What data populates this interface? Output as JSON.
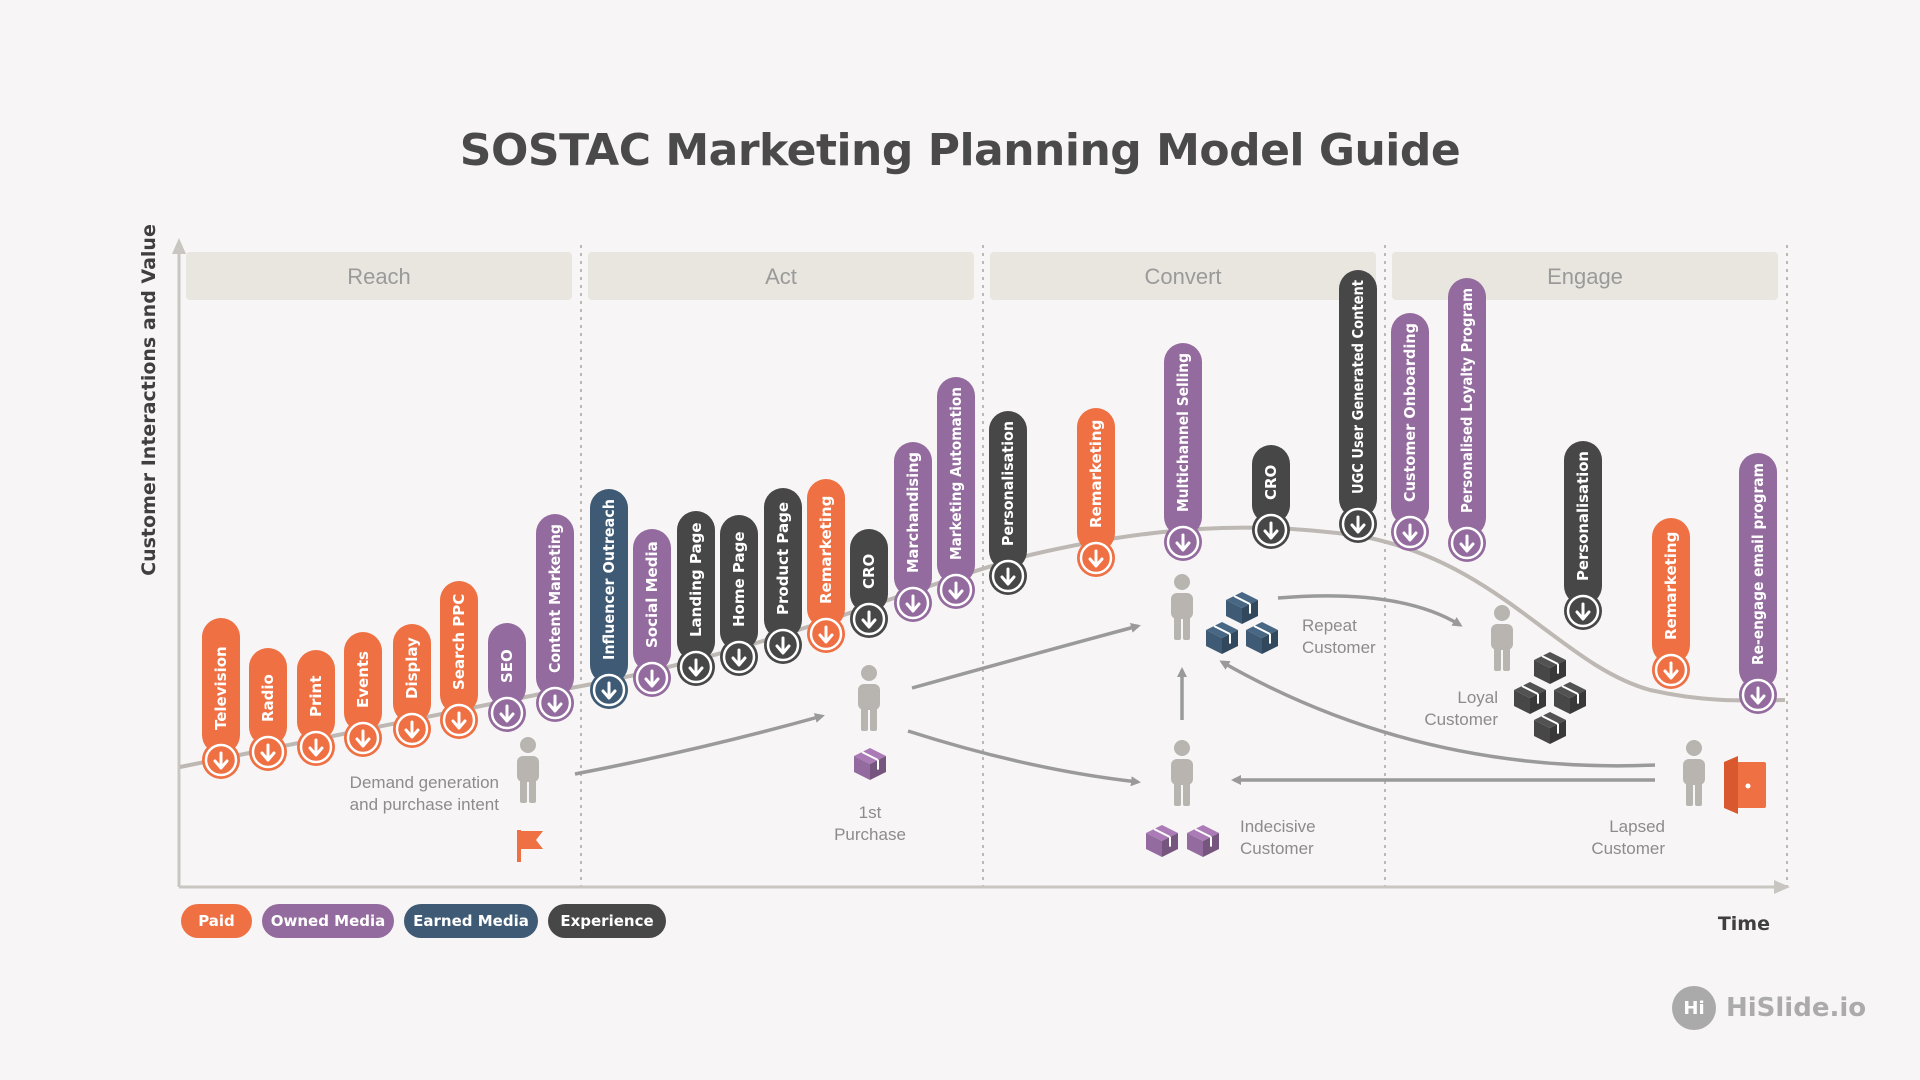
{
  "title": "SOSTAC Marketing Planning Model Guide",
  "colors": {
    "paid": "#ef7043",
    "owned": "#946b9e",
    "earned": "#3e5a74",
    "experience": "#474747",
    "phase_bg": "#e9e6df",
    "curve": "#bdb8b3",
    "arrow": "#9a9a9a",
    "person": "#b8b5b0"
  },
  "axes": {
    "y_label": "Customer Interactions and Value",
    "x_label": "Time"
  },
  "phases": [
    "Reach",
    "Act",
    "Convert",
    "Engage"
  ],
  "touchpoints": [
    {
      "label": "Television",
      "type": "paid"
    },
    {
      "label": "Radio",
      "type": "paid"
    },
    {
      "label": "Print",
      "type": "paid"
    },
    {
      "label": "Events",
      "type": "paid"
    },
    {
      "label": "Display",
      "type": "paid"
    },
    {
      "label": "Search PPC",
      "type": "paid"
    },
    {
      "label": "SEO",
      "type": "owned"
    },
    {
      "label": "Content Marketing",
      "type": "owned"
    },
    {
      "label": "Influencer Outreach",
      "type": "earned"
    },
    {
      "label": "Social Media",
      "type": "owned"
    },
    {
      "label": "Landing Page",
      "type": "experience"
    },
    {
      "label": "Home Page",
      "type": "experience"
    },
    {
      "label": "Product Page",
      "type": "experience"
    },
    {
      "label": "Remarketing",
      "type": "paid"
    },
    {
      "label": "CRO",
      "type": "experience"
    },
    {
      "label": "Marchandising",
      "type": "owned"
    },
    {
      "label": "Marketing Automation",
      "type": "owned"
    },
    {
      "label": "Personalisation",
      "type": "experience"
    },
    {
      "label": "Remarketing",
      "type": "paid"
    },
    {
      "label": "Multichannel Selling",
      "type": "owned"
    },
    {
      "label": "CRO",
      "type": "experience"
    },
    {
      "label": "UGC User Generated Content",
      "type": "experience"
    },
    {
      "label": "Customer Onboarding",
      "type": "owned"
    },
    {
      "label": "Personalised Loyalty Program",
      "type": "owned"
    },
    {
      "label": "Personalisation",
      "type": "experience"
    },
    {
      "label": "Remarketing",
      "type": "paid"
    },
    {
      "label": "Re-engage email program",
      "type": "owned"
    }
  ],
  "customers": {
    "demand": [
      "Demand generation",
      "and purchase intent"
    ],
    "first": [
      "1st",
      "Purchase"
    ],
    "repeat": [
      "Repeat",
      "Customer"
    ],
    "indecisive": [
      "Indecisive",
      "Customer"
    ],
    "loyal": [
      "Loyal",
      "Customer"
    ],
    "lapsed": [
      "Lapsed",
      "Customer"
    ]
  },
  "legend": [
    {
      "label": "Paid",
      "type": "paid"
    },
    {
      "label": "Owned Media",
      "type": "owned"
    },
    {
      "label": "Earned Media",
      "type": "earned"
    },
    {
      "label": "Experience",
      "type": "experience"
    }
  ],
  "brand": {
    "icon_text": "Hi",
    "name": "HiSlide.io"
  }
}
